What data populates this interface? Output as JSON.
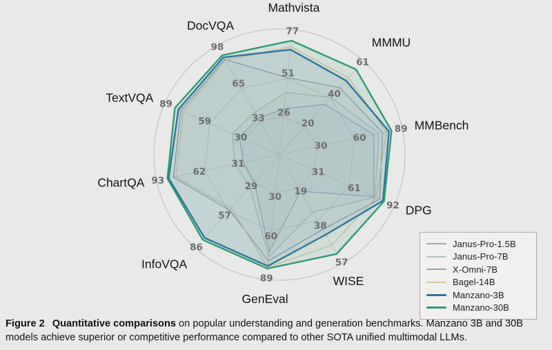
{
  "figure": {
    "caption_label": "Figure 2",
    "caption_bold": "Quantitative comparisons",
    "caption_rest": " on popular understanding and generation benchmarks. Manzano 3B and 30B models achieve superior or competitive performance compared to other SOTA unified multimodal LLMs."
  },
  "colors": {
    "background": "#e9e9e9",
    "outer_circle": "#c3c3c3",
    "grid_rings": "#c9c9c9",
    "spokes": "#cdcdcd",
    "tick_labels": "#6d6d6d",
    "axis_labels": "#141414",
    "legend_background": "#f1f0ee",
    "legend_border": "#a8a8a8"
  },
  "chart_data": {
    "type": "radar",
    "title": "",
    "legend_position": "bottom-right",
    "grid": "rings at 1/3 and 2/3 of each axis plus outer circle; radial spokes",
    "scale_note": "each axis has its own scale from 0 at center to max at vertex; tick labels shown at 1/3, 2/3 and max",
    "axes": [
      {
        "label": "Mathvista",
        "max": 77,
        "ticks": [
          26,
          51,
          77
        ]
      },
      {
        "label": "MMMU",
        "max": 61,
        "ticks": [
          20,
          40,
          61
        ]
      },
      {
        "label": "MMBench",
        "max": 89,
        "ticks": [
          30,
          60,
          89
        ]
      },
      {
        "label": "DPG",
        "max": 92,
        "ticks": [
          31,
          61,
          92
        ]
      },
      {
        "label": "WISE",
        "max": 57,
        "ticks": [
          19,
          38,
          57
        ]
      },
      {
        "label": "GenEval",
        "max": 89,
        "ticks": [
          30,
          60,
          89
        ]
      },
      {
        "label": "InfoVQA",
        "max": 86,
        "ticks": [
          29,
          57,
          86
        ]
      },
      {
        "label": "ChartQA",
        "max": 93,
        "ticks": [
          31,
          62,
          93
        ]
      },
      {
        "label": "TextVQA",
        "max": 89,
        "ticks": [
          30,
          59,
          89
        ]
      },
      {
        "label": "DocVQA",
        "max": 98,
        "ticks": [
          33,
          65,
          98
        ]
      }
    ],
    "series": [
      {
        "name": "Janus-Pro-1.5B",
        "color": "#a3a1c6",
        "line_width": 1.3,
        "fill_opacity": 0.07,
        "values": [
          31,
          36,
          75,
          83,
          21,
          76,
          28,
          30,
          34,
          36
        ]
      },
      {
        "name": "Janus-Pro-7B",
        "color": "#b2c1bc",
        "line_width": 1.3,
        "fill_opacity": 0.07,
        "values": [
          42,
          41,
          79,
          84,
          33,
          80,
          33,
          37,
          40,
          42
        ]
      },
      {
        "name": "X-Omni-7B",
        "color": "#9a9ab6",
        "line_width": 1.3,
        "fill_opacity": 0.07,
        "values": [
          52,
          48,
          82,
          88,
          43,
          83,
          56,
          88,
          84,
          94
        ]
      },
      {
        "name": "Bagel-14B",
        "color": "#d9c29b",
        "line_width": 1.3,
        "fill_opacity": 0.07,
        "values": [
          73,
          55,
          85,
          85,
          52,
          88,
          54,
          86,
          82,
          93
        ]
      },
      {
        "name": "Manzano-3B",
        "color": "#2e71a3",
        "line_width": 2.4,
        "fill_opacity": 0.1,
        "values": [
          71,
          53,
          87,
          91,
          46,
          87,
          84,
          92,
          86,
          96
        ]
      },
      {
        "name": "Manzano-30B",
        "color": "#2f9b70",
        "line_width": 2.4,
        "fill_opacity": 0.12,
        "values": [
          77,
          61,
          89,
          92,
          57,
          89,
          86,
          93,
          89,
          98
        ]
      }
    ]
  }
}
